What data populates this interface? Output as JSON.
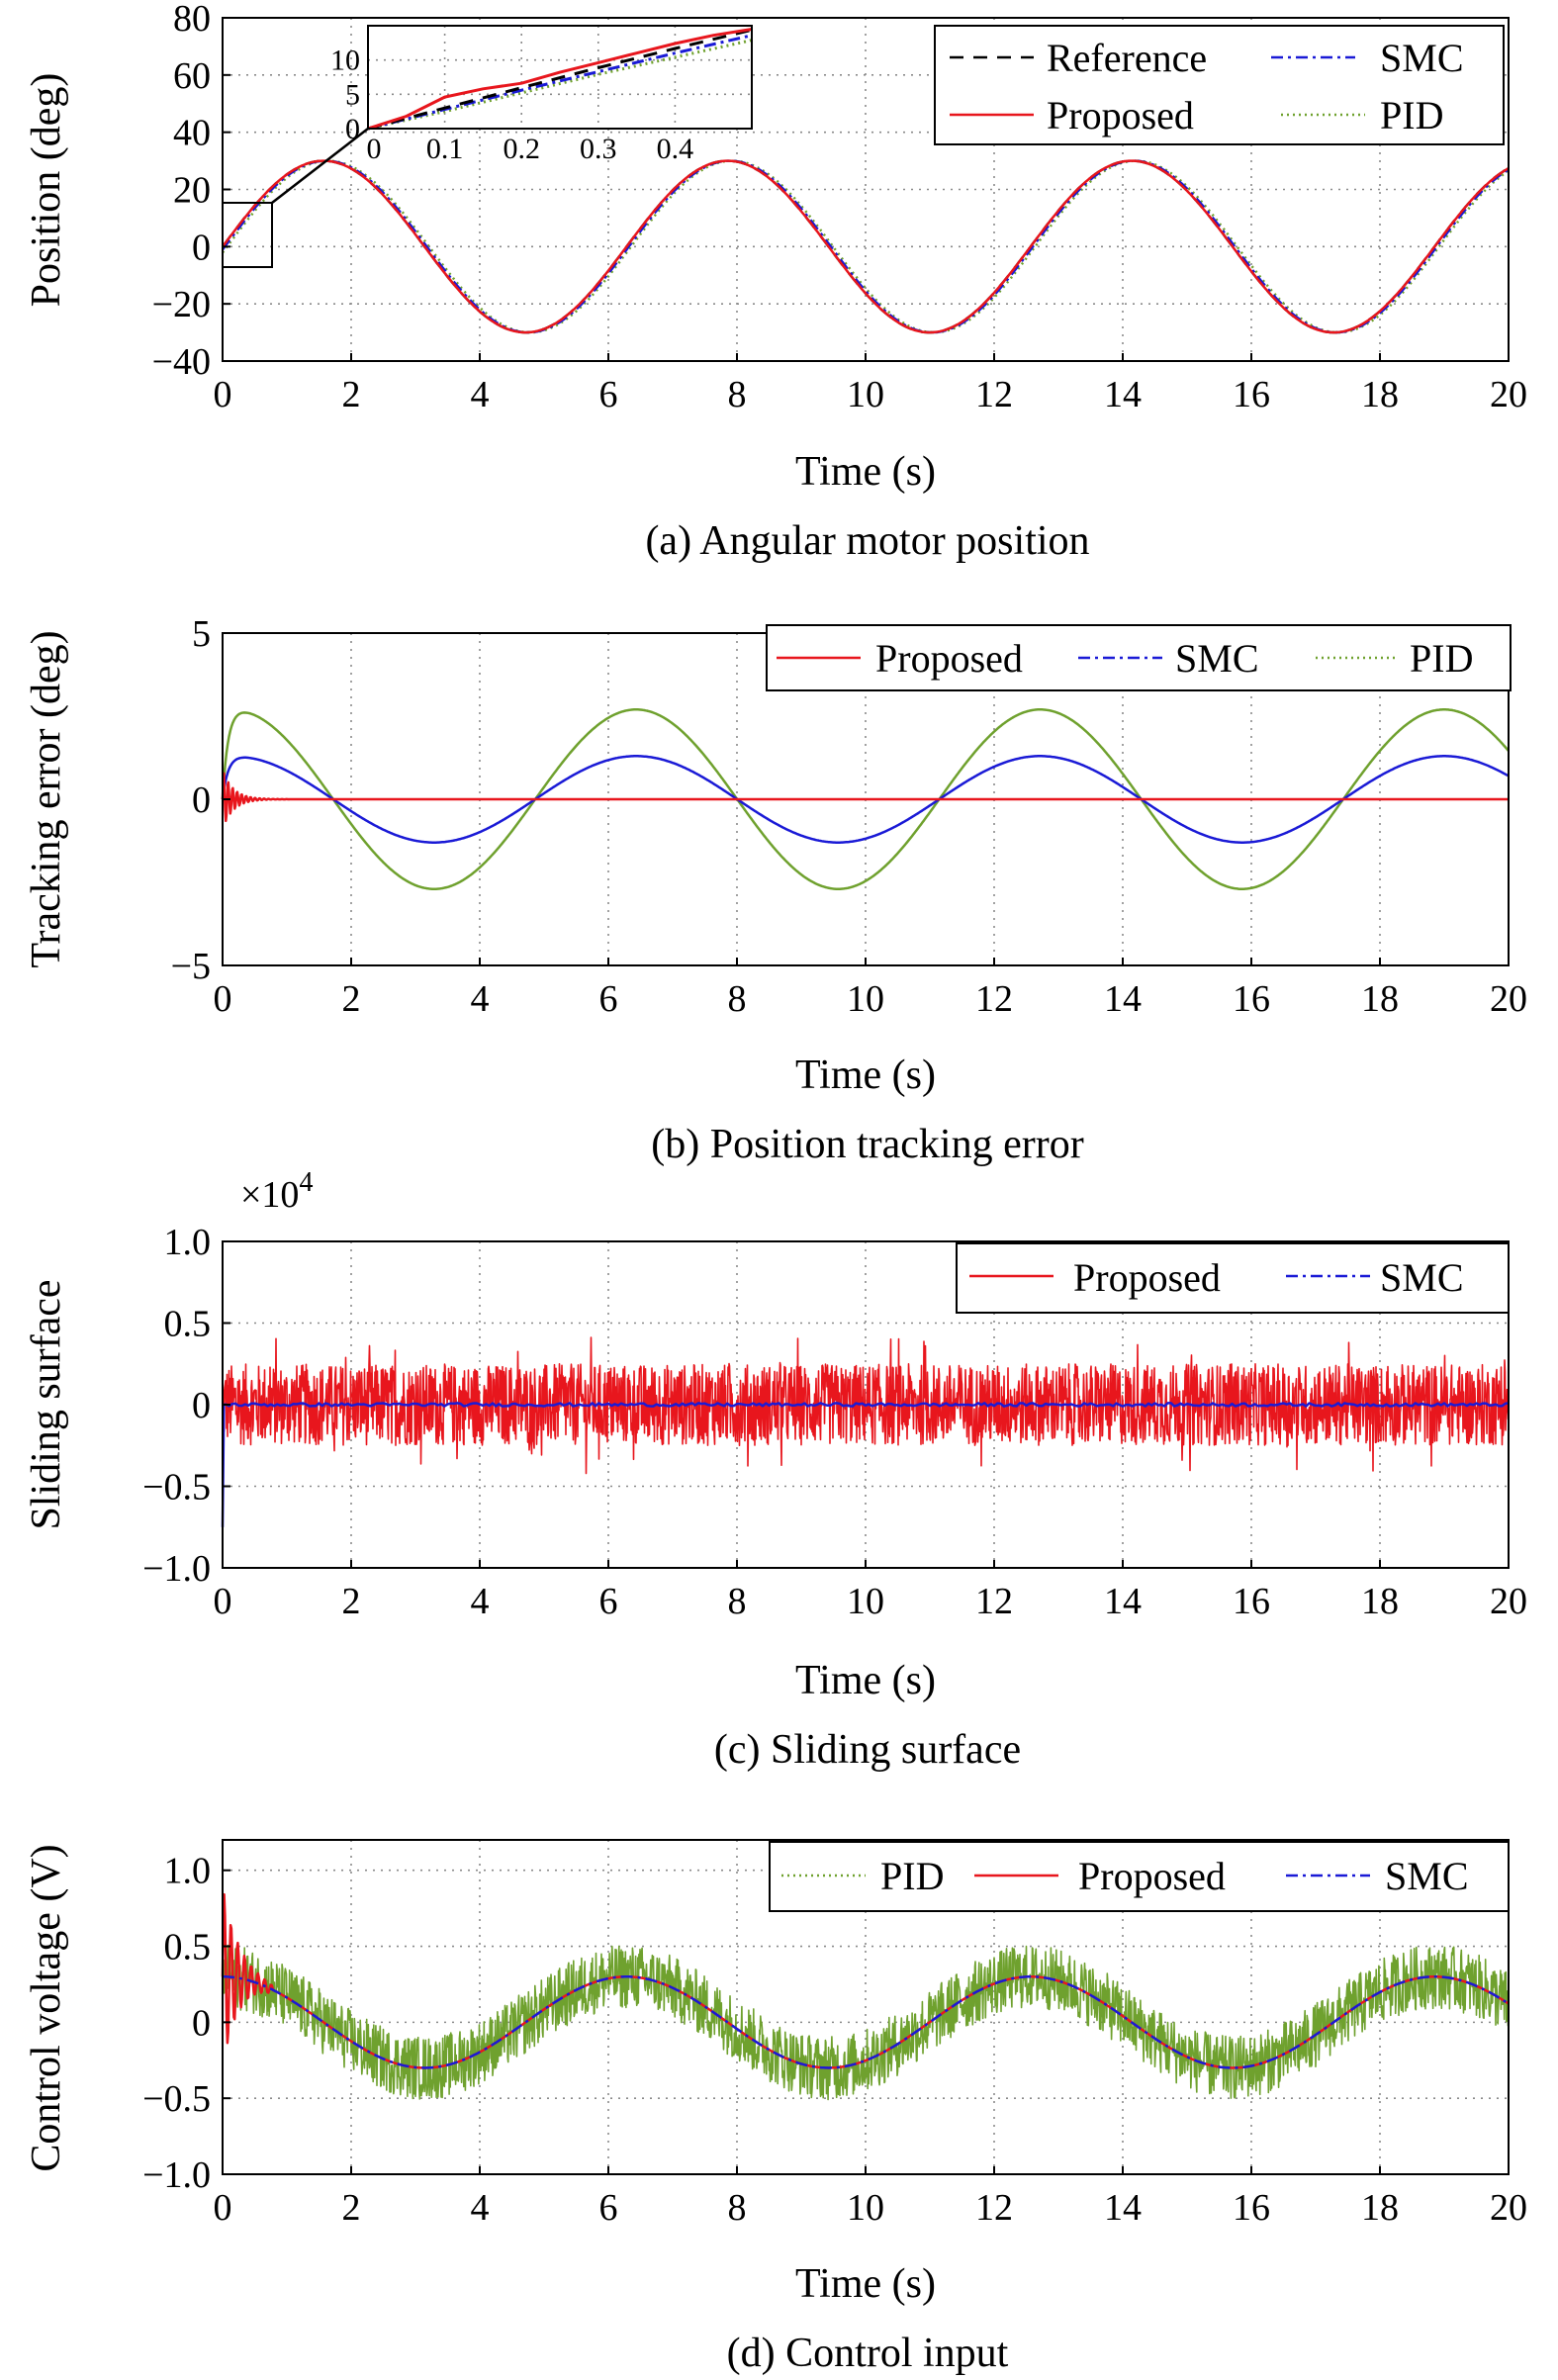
{
  "colors": {
    "reference": "#000000",
    "proposed": "#e8161d",
    "smc": "#1a1ad6",
    "pid": "#6fa12e"
  },
  "chart_data": [
    {
      "type": "line",
      "caption": "(a) Angular motor position",
      "xlabel": "Time (s)",
      "ylabel": "Position (deg)",
      "xlim": [
        0,
        20
      ],
      "ylim": [
        -40,
        80
      ],
      "xticks": [
        "0",
        "2",
        "4",
        "6",
        "8",
        "10",
        "12",
        "14",
        "16",
        "18",
        "20"
      ],
      "yticks": [
        "−40",
        "−20",
        "0",
        "20",
        "40",
        "60",
        "80"
      ],
      "grid": true,
      "legend_position": "top-right",
      "series": [
        {
          "name": "Reference",
          "style": "dashed",
          "color": "#000000",
          "model": "30*sin(t)",
          "amplitude": 30,
          "omega": 1.0
        },
        {
          "name": "SMC",
          "style": "dashdot",
          "color": "#1a1ad6",
          "model": "30*sin(t) - lag",
          "amplitude": 30,
          "omega": 1.0
        },
        {
          "name": "Proposed",
          "style": "solid",
          "color": "#e8161d",
          "model": "30*sin(t)",
          "amplitude": 30,
          "omega": 1.0
        },
        {
          "name": "PID",
          "style": "dotted",
          "color": "#6fa12e",
          "model": "30*sin(t) - lag",
          "amplitude": 30,
          "omega": 1.0
        }
      ],
      "inset": {
        "xlim": [
          0,
          0.5
        ],
        "ylim": [
          0,
          15
        ],
        "xticks": [
          "0",
          "0.1",
          "0.2",
          "0.3",
          "0.4"
        ],
        "yticks": [
          "0",
          "5",
          "10"
        ],
        "series": [
          {
            "name": "Reference",
            "x": [
              0,
              0.1,
              0.2,
              0.3,
              0.4,
              0.5
            ],
            "y": [
              0,
              3.0,
              5.96,
              8.87,
              11.68,
              14.38
            ]
          },
          {
            "name": "Proposed",
            "x": [
              0,
              0.05,
              0.1,
              0.15,
              0.2,
              0.25,
              0.3,
              0.35,
              0.4,
              0.45,
              0.5
            ],
            "y": [
              0,
              1.8,
              4.6,
              5.8,
              6.6,
              8.2,
              9.6,
              11.0,
              12.4,
              13.6,
              14.5
            ]
          },
          {
            "name": "SMC",
            "x": [
              0,
              0.1,
              0.2,
              0.3,
              0.4,
              0.5
            ],
            "y": [
              0,
              2.8,
              5.6,
              8.3,
              11.0,
              13.6
            ]
          },
          {
            "name": "PID",
            "x": [
              0,
              0.1,
              0.2,
              0.3,
              0.4,
              0.5
            ],
            "y": [
              0,
              2.5,
              5.2,
              7.9,
              10.4,
              12.9
            ]
          }
        ]
      }
    },
    {
      "type": "line",
      "caption": "(b) Position tracking error",
      "xlabel": "Time (s)",
      "ylabel": "Tracking error (deg)",
      "xlim": [
        0,
        20
      ],
      "ylim": [
        -5,
        5
      ],
      "xticks": [
        "0",
        "2",
        "4",
        "6",
        "8",
        "10",
        "12",
        "14",
        "16",
        "18",
        "20"
      ],
      "yticks": [
        "−5",
        "0",
        "5"
      ],
      "grid": true,
      "legend_position": "top-right",
      "series": [
        {
          "name": "Proposed",
          "style": "solid",
          "color": "#e8161d",
          "model": "transient oscillation decaying to 0",
          "peak": 0.9,
          "decay": 6
        },
        {
          "name": "SMC",
          "style": "dashdot",
          "color": "#1a1ad6",
          "model": "1.3*cos(t - 0.15)",
          "amplitude": 1.3,
          "phase": 0.15
        },
        {
          "name": "PID",
          "style": "dotted",
          "color": "#6fa12e",
          "model": "2.7*cos(t - 0.15)",
          "amplitude": 2.7,
          "phase": 0.15
        }
      ]
    },
    {
      "type": "line",
      "caption": "(c) Sliding surface",
      "xlabel": "Time (s)",
      "ylabel": "Sliding surface",
      "multiplier_label": "×10",
      "multiplier_exp": "4",
      "xlim": [
        0,
        20
      ],
      "ylim": [
        -1.0,
        1.0
      ],
      "xticks": [
        "0",
        "2",
        "4",
        "6",
        "8",
        "10",
        "12",
        "14",
        "16",
        "18",
        "20"
      ],
      "yticks": [
        "−1.0",
        "−0.5",
        "0",
        "0.5",
        "1.0"
      ],
      "grid": true,
      "legend_position": "top-right",
      "series": [
        {
          "name": "Proposed",
          "style": "solid",
          "color": "#e8161d",
          "model": "noise",
          "mean": 0,
          "typical_amplitude": 0.25,
          "max": 0.45,
          "min": -0.45
        },
        {
          "name": "SMC",
          "style": "dashdot",
          "color": "#1a1ad6",
          "model": "near zero",
          "mean": 0,
          "initial": -0.75
        }
      ]
    },
    {
      "type": "line",
      "caption": "(d) Control input",
      "xlabel": "Time (s)",
      "ylabel": "Control voltage (V)",
      "xlim": [
        0,
        20
      ],
      "ylim": [
        -1.0,
        1.2
      ],
      "xticks": [
        "0",
        "2",
        "4",
        "6",
        "8",
        "10",
        "12",
        "14",
        "16",
        "18",
        "20"
      ],
      "yticks": [
        "−1.0",
        "−0.5",
        "0",
        "0.5",
        "1.0"
      ],
      "grid": true,
      "legend_position": "top-right",
      "series": [
        {
          "name": "PID",
          "style": "dotted",
          "color": "#6fa12e",
          "model": "0.3*cos(t) + noise",
          "amplitude": 0.3,
          "noise_amplitude": 0.3
        },
        {
          "name": "Proposed",
          "style": "solid",
          "color": "#e8161d",
          "model": "0.3*cos(t)",
          "amplitude": 0.3,
          "initial_spike": 0.6
        },
        {
          "name": "SMC",
          "style": "dashdot",
          "color": "#1a1ad6",
          "model": "0.3*cos(t)",
          "amplitude": 0.3
        }
      ]
    }
  ]
}
